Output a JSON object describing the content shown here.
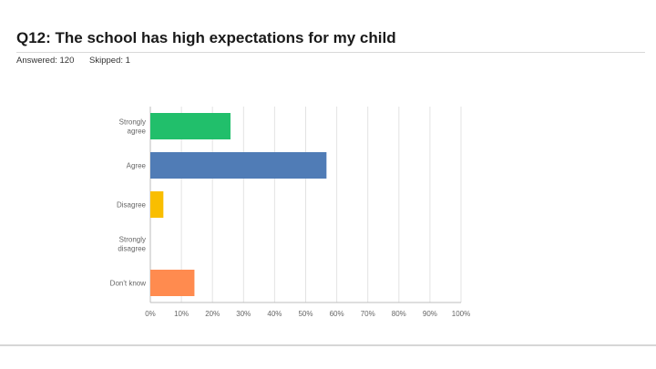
{
  "question": {
    "title": "Q12: The school has high expectations for my child",
    "answered": "Answered: 120",
    "skipped": "Skipped: 1"
  },
  "chart_data": {
    "type": "bar",
    "orientation": "horizontal",
    "categories": [
      "Strongly agree",
      "Agree",
      "Disagree",
      "Strongly disagree",
      "Don't know"
    ],
    "values": [
      25.8,
      56.7,
      4.2,
      0,
      14.2
    ],
    "colors": [
      "#21bf6b",
      "#507cb6",
      "#f9be00",
      "#6c4b8e",
      "#ff8b4f"
    ],
    "xlim": [
      0,
      100
    ],
    "ticks": [
      "0%",
      "10%",
      "20%",
      "30%",
      "40%",
      "50%",
      "60%",
      "70%",
      "80%",
      "90%",
      "100%"
    ],
    "grid": true
  }
}
